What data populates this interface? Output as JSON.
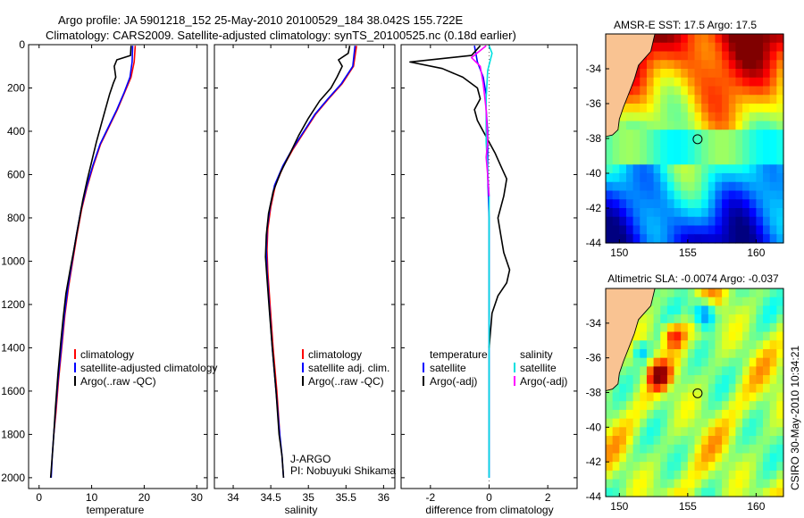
{
  "header": {
    "line1": "Argo profile: JA 5901218_152 25-May-2010 20100529_184 38.042S 155.722E",
    "line2": "Climatology: CARS2009. Satellite-adjusted climatology: synTS_20100525.nc (0.18d earlier)"
  },
  "footer": {
    "stamp": "CSIRO 30-May-2010 10:34:21"
  },
  "chart_data": [
    {
      "id": "temperature",
      "type": "line",
      "xlabel": "temperature",
      "ylabel": "",
      "xlim": [
        -2,
        32
      ],
      "ylim": [
        2050,
        0
      ],
      "y_inverted": true,
      "xticks": [
        0,
        10,
        20,
        30
      ],
      "yticks": [
        0,
        200,
        400,
        600,
        800,
        1000,
        1200,
        1400,
        1600,
        1800,
        2000
      ],
      "legend": {
        "placement": "lower-right",
        "entries": [
          {
            "label": "climatology",
            "color": "#ff0000"
          },
          {
            "label": "satellite-adjusted climatology",
            "color": "#0000ff"
          },
          {
            "label": "Argo(..raw -QC)",
            "color": "#000000"
          }
        ]
      },
      "series": [
        {
          "name": "climatology",
          "color": "#ff0000",
          "points": [
            [
              18.3,
              5
            ],
            [
              18.1,
              80
            ],
            [
              17.5,
              150
            ],
            [
              16.3,
              220
            ],
            [
              14.9,
              300
            ],
            [
              13.3,
              380
            ],
            [
              11.7,
              460
            ],
            [
              10.3,
              560
            ],
            [
              9.1,
              660
            ],
            [
              8.1,
              760
            ],
            [
              7.2,
              880
            ],
            [
              6.4,
              1000
            ],
            [
              5.6,
              1120
            ],
            [
              4.9,
              1250
            ],
            [
              4.3,
              1400
            ],
            [
              3.7,
              1550
            ],
            [
              3.2,
              1700
            ],
            [
              2.8,
              1800
            ]
          ]
        },
        {
          "name": "satellite-adjusted climatology",
          "color": "#0000ff",
          "points": [
            [
              17.8,
              5
            ],
            [
              17.7,
              80
            ],
            [
              17.3,
              150
            ],
            [
              16.2,
              220
            ],
            [
              14.8,
              300
            ],
            [
              13.2,
              380
            ],
            [
              11.6,
              460
            ],
            [
              10.2,
              560
            ],
            [
              9.0,
              660
            ],
            [
              8.0,
              760
            ],
            [
              7.1,
              880
            ],
            [
              6.3,
              1000
            ],
            [
              5.5,
              1120
            ],
            [
              4.8,
              1250
            ],
            [
              4.2,
              1400
            ],
            [
              3.6,
              1550
            ],
            [
              3.1,
              1700
            ],
            [
              2.8,
              1800
            ],
            [
              2.5,
              1900
            ],
            [
              2.3,
              2000
            ]
          ]
        },
        {
          "name": "Argo(..raw -QC)",
          "color": "#000000",
          "points": [
            [
              17.5,
              5
            ],
            [
              17.4,
              50
            ],
            [
              14.8,
              70
            ],
            [
              14.3,
              100
            ],
            [
              14.6,
              150
            ],
            [
              14.1,
              180
            ],
            [
              13.4,
              230
            ],
            [
              12.6,
              300
            ],
            [
              11.8,
              370
            ],
            [
              10.9,
              450
            ],
            [
              10.0,
              540
            ],
            [
              9.2,
              620
            ],
            [
              8.3,
              720
            ],
            [
              7.4,
              840
            ],
            [
              6.6,
              950
            ],
            [
              5.9,
              1040
            ],
            [
              5.1,
              1150
            ],
            [
              4.6,
              1260
            ],
            [
              4.1,
              1380
            ],
            [
              3.6,
              1520
            ],
            [
              3.1,
              1680
            ],
            [
              2.8,
              1800
            ],
            [
              2.5,
              1900
            ],
            [
              2.2,
              2000
            ]
          ]
        }
      ]
    },
    {
      "id": "salinity",
      "type": "line",
      "xlabel": "salinity",
      "ylabel": "",
      "xlim": [
        33.75,
        36.15
      ],
      "ylim": [
        2050,
        0
      ],
      "y_inverted": true,
      "xticks": [
        34,
        34.5,
        35,
        35.5,
        36
      ],
      "legend": {
        "placement": "lower-right",
        "entries": [
          {
            "label": "climatology",
            "color": "#ff0000"
          },
          {
            "label": "satellite adj. clim.",
            "color": "#0000ff"
          },
          {
            "label": "Argo(..raw -QC)",
            "color": "#000000"
          }
        ]
      },
      "annotations": [
        "J-ARGO",
        "PI: Nobuyuki Shikama"
      ],
      "series": [
        {
          "name": "climatology",
          "color": "#ff0000",
          "points": [
            [
              35.64,
              5
            ],
            [
              35.6,
              100
            ],
            [
              35.45,
              180
            ],
            [
              35.27,
              250
            ],
            [
              35.1,
              320
            ],
            [
              34.95,
              400
            ],
            [
              34.8,
              480
            ],
            [
              34.67,
              560
            ],
            [
              34.56,
              650
            ],
            [
              34.5,
              750
            ],
            [
              34.46,
              850
            ],
            [
              34.45,
              950
            ],
            [
              34.46,
              1050
            ],
            [
              34.49,
              1200
            ],
            [
              34.53,
              1400
            ],
            [
              34.58,
              1600
            ],
            [
              34.62,
              1800
            ]
          ]
        },
        {
          "name": "satellite adj. clim.",
          "color": "#0000ff",
          "points": [
            [
              35.62,
              5
            ],
            [
              35.59,
              100
            ],
            [
              35.44,
              180
            ],
            [
              35.26,
              250
            ],
            [
              35.09,
              320
            ],
            [
              34.94,
              400
            ],
            [
              34.79,
              480
            ],
            [
              34.66,
              560
            ],
            [
              34.55,
              650
            ],
            [
              34.49,
              750
            ],
            [
              34.45,
              850
            ],
            [
              34.44,
              950
            ],
            [
              34.45,
              1050
            ],
            [
              34.48,
              1200
            ],
            [
              34.52,
              1400
            ],
            [
              34.57,
              1600
            ],
            [
              34.62,
              1800
            ],
            [
              34.65,
              1900
            ],
            [
              34.67,
              2000
            ]
          ]
        },
        {
          "name": "Argo(..raw -QC)",
          "color": "#000000",
          "points": [
            [
              35.55,
              5
            ],
            [
              35.53,
              40
            ],
            [
              35.4,
              70
            ],
            [
              35.45,
              100
            ],
            [
              35.38,
              150
            ],
            [
              35.3,
              200
            ],
            [
              35.15,
              260
            ],
            [
              35.0,
              340
            ],
            [
              34.87,
              420
            ],
            [
              34.76,
              500
            ],
            [
              34.63,
              590
            ],
            [
              34.53,
              680
            ],
            [
              34.47,
              780
            ],
            [
              34.44,
              880
            ],
            [
              34.43,
              980
            ],
            [
              34.45,
              1080
            ],
            [
              34.48,
              1220
            ],
            [
              34.52,
              1400
            ],
            [
              34.57,
              1600
            ],
            [
              34.61,
              1800
            ],
            [
              34.65,
              1900
            ],
            [
              34.67,
              2000
            ]
          ]
        }
      ]
    },
    {
      "id": "difference",
      "type": "line",
      "xlabel": "difference from climatology",
      "ylabel": "",
      "xlim": [
        -3,
        3
      ],
      "ylim": [
        2050,
        0
      ],
      "y_inverted": true,
      "xticks": [
        -2,
        0,
        2
      ],
      "legend": {
        "placement": "lower",
        "entries": [
          {
            "label": "temperature",
            "color": ""
          },
          {
            "label": "satellite",
            "color": "#0000ff"
          },
          {
            "label": "Argo(-adj)",
            "color": "#000000"
          },
          {
            "label": "salinity",
            "color": ""
          },
          {
            "label": "satellite",
            "color": "#00e0e0"
          },
          {
            "label": "Argo(-adj)",
            "color": "#ff00ff"
          }
        ]
      },
      "series": [
        {
          "name": "temperature satellite",
          "color": "#0000ff",
          "points": [
            [
              -0.5,
              5
            ],
            [
              -0.4,
              80
            ],
            [
              -0.2,
              150
            ],
            [
              -0.1,
              230
            ],
            [
              -0.1,
              300
            ],
            [
              -0.05,
              400
            ],
            [
              -0.05,
              600
            ],
            [
              0,
              800
            ],
            [
              0,
              1200
            ],
            [
              0,
              1600
            ],
            [
              0,
              2000
            ]
          ]
        },
        {
          "name": "temperature Argo(-adj)",
          "color": "#000000",
          "points": [
            [
              -0.3,
              5
            ],
            [
              -0.6,
              50
            ],
            [
              -2.7,
              80
            ],
            [
              -1.6,
              110
            ],
            [
              -0.9,
              150
            ],
            [
              -0.4,
              200
            ],
            [
              -0.3,
              250
            ],
            [
              -0.5,
              300
            ],
            [
              -0.4,
              350
            ],
            [
              -0.2,
              400
            ],
            [
              0,
              450
            ],
            [
              0.2,
              500
            ],
            [
              0.4,
              560
            ],
            [
              0.6,
              620
            ],
            [
              0.5,
              700
            ],
            [
              0.3,
              800
            ],
            [
              0.4,
              880
            ],
            [
              0.5,
              960
            ],
            [
              0.7,
              1040
            ],
            [
              0.6,
              1100
            ],
            [
              0.3,
              1160
            ],
            [
              0.1,
              1240
            ],
            [
              0,
              1400
            ]
          ]
        },
        {
          "name": "salinity satellite",
          "color": "#00e0e0",
          "points": [
            [
              0,
              5
            ],
            [
              0.1,
              40
            ],
            [
              -0.05,
              120
            ],
            [
              -0.1,
              250
            ],
            [
              -0.1,
              450
            ],
            [
              0,
              700
            ],
            [
              0,
              1000
            ],
            [
              0,
              1400
            ],
            [
              0,
              1800
            ],
            [
              0,
              2000
            ]
          ]
        },
        {
          "name": "salinity Argo(-adj)",
          "color": "#ff00ff",
          "points": [
            [
              -0.1,
              5
            ],
            [
              -0.6,
              60
            ],
            [
              -0.3,
              100
            ],
            [
              -0.2,
              180
            ],
            [
              -0.1,
              300
            ],
            [
              -0.05,
              450
            ],
            [
              -0.1,
              520
            ],
            [
              -0.05,
              600
            ],
            [
              0,
              700
            ]
          ]
        }
      ]
    },
    {
      "id": "sst-map",
      "type": "heatmap",
      "title": "AMSR-E SST: 17.5  Argo: 17.5",
      "xlim": [
        149,
        162
      ],
      "ylim": [
        -44,
        -32
      ],
      "xticks": [
        150,
        155,
        160
      ],
      "yticks": [
        -34,
        -36,
        -38,
        -40,
        -42,
        -44
      ],
      "marker": {
        "lon": 155.722,
        "lat": -38.042
      },
      "colors": {
        "land": "#f9c392",
        "coast": "#000000"
      }
    },
    {
      "id": "sla-map",
      "type": "heatmap",
      "title": "Altimetric SLA: -0.0074  Argo: -0.037",
      "xlim": [
        149,
        162
      ],
      "ylim": [
        -44,
        -32
      ],
      "xticks": [
        150,
        155,
        160
      ],
      "yticks": [
        -34,
        -36,
        -38,
        -40,
        -42,
        -44
      ],
      "marker": {
        "lon": 155.722,
        "lat": -38.042
      },
      "colors": {
        "land": "#f9c392",
        "coast": "#000000"
      }
    }
  ]
}
